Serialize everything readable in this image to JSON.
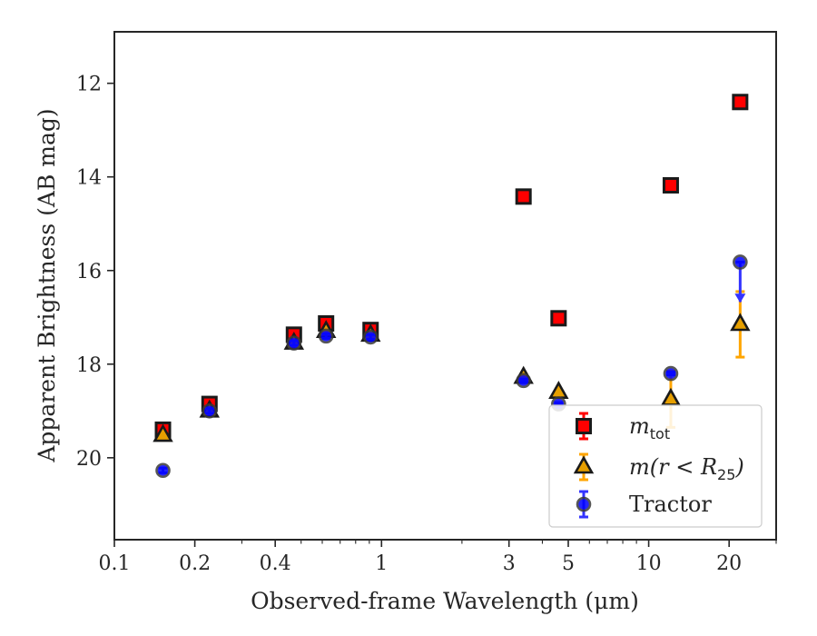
{
  "chart_data": {
    "type": "scatter",
    "title": "",
    "xlabel": "Observed-frame Wavelength (μm)",
    "ylabel": "Apparent Brightness (AB mag)",
    "xscale": "log",
    "xlim": [
      0.1,
      30
    ],
    "ylim": [
      21.75,
      10.9
    ],
    "y_inverted": true,
    "grid": false,
    "legend_position": "bottom-right",
    "xticks": [
      {
        "value": 0.1,
        "label": "0.1"
      },
      {
        "value": 0.2,
        "label": "0.2"
      },
      {
        "value": 0.4,
        "label": "0.4"
      },
      {
        "value": 1,
        "label": "1"
      },
      {
        "value": 3,
        "label": "3"
      },
      {
        "value": 5,
        "label": "5"
      },
      {
        "value": 10,
        "label": "10"
      },
      {
        "value": 20,
        "label": "20"
      }
    ],
    "yticks": [
      {
        "value": 12,
        "label": "12"
      },
      {
        "value": 14,
        "label": "14"
      },
      {
        "value": 16,
        "label": "16"
      },
      {
        "value": 18,
        "label": "18"
      },
      {
        "value": 20,
        "label": "20"
      }
    ],
    "series": [
      {
        "name": "m_tot",
        "legend_main": "m",
        "legend_sub": "tot",
        "marker": "square",
        "color": "#ff0000",
        "errcolor": "#ff0000",
        "points": [
          {
            "x": 0.152,
            "y": 19.4,
            "err": 0.05
          },
          {
            "x": 0.227,
            "y": 18.85,
            "err": 0.05
          },
          {
            "x": 0.47,
            "y": 17.37,
            "err": 0.05
          },
          {
            "x": 0.62,
            "y": 17.13,
            "err": 0.05
          },
          {
            "x": 0.91,
            "y": 17.27,
            "err": 0.05
          },
          {
            "x": 3.4,
            "y": 14.42,
            "err": 0.03
          },
          {
            "x": 4.6,
            "y": 17.02,
            "err": 0.03
          },
          {
            "x": 12.1,
            "y": 14.18,
            "err": 0.03
          },
          {
            "x": 22.0,
            "y": 12.4,
            "err": 0.03
          }
        ]
      },
      {
        "name": "m(r < R25)",
        "legend_main": "m(r < R",
        "legend_sub": "25",
        "legend_close": ")",
        "marker": "triangle",
        "color": "#e69f00",
        "errcolor": "#ffa500",
        "points": [
          {
            "x": 0.152,
            "y": 19.52,
            "err": 0.05
          },
          {
            "x": 0.227,
            "y": 19.0,
            "err": 0.05
          },
          {
            "x": 0.47,
            "y": 17.55,
            "err": 0.05
          },
          {
            "x": 0.62,
            "y": 17.3,
            "err": 0.05
          },
          {
            "x": 0.91,
            "y": 17.38,
            "err": 0.05
          },
          {
            "x": 3.4,
            "y": 18.28,
            "err": 0.03
          },
          {
            "x": 4.6,
            "y": 18.6,
            "err": 0.03
          },
          {
            "x": 12.1,
            "y": 18.75,
            "err": 0.6
          },
          {
            "x": 22.0,
            "y": 17.15,
            "err": 0.7
          }
        ]
      },
      {
        "name": "Tractor",
        "legend_main": "Tractor",
        "marker": "circle",
        "color": "#0000ff",
        "errcolor": "#3333ff",
        "points": [
          {
            "x": 0.152,
            "y": 20.27,
            "err": 0.05
          },
          {
            "x": 0.227,
            "y": 19.0,
            "err": 0.05
          },
          {
            "x": 0.47,
            "y": 17.55,
            "err": 0.05
          },
          {
            "x": 0.62,
            "y": 17.4,
            "err": 0.05
          },
          {
            "x": 0.91,
            "y": 17.42,
            "err": 0.05
          },
          {
            "x": 3.4,
            "y": 18.35,
            "err": 0.03
          },
          {
            "x": 4.6,
            "y": 18.85,
            "err": 0.03
          },
          {
            "x": 12.1,
            "y": 18.2,
            "err": 0.03
          },
          {
            "x": 22.0,
            "y": 15.82,
            "err_low": 0,
            "err_high": 0.85,
            "upper_limit_arrow": true
          }
        ]
      }
    ]
  }
}
